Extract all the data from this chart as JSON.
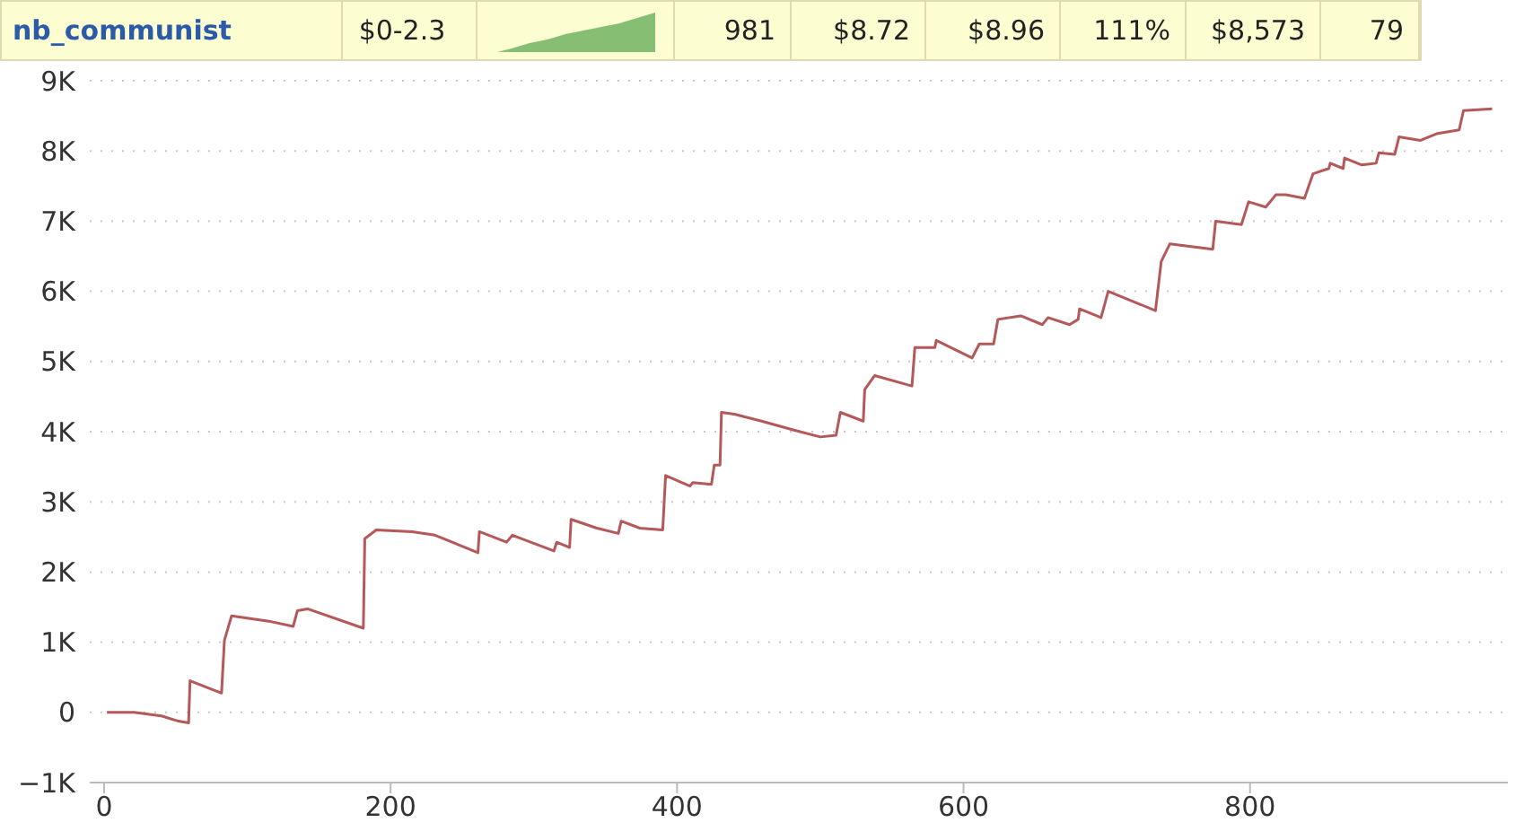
{
  "chart_data": {
    "type": "line",
    "title": "nb_communist",
    "annotations": [
      "$0-2.3",
      "981",
      "$8.72",
      "$8.96",
      "111%",
      "$8,573",
      "79"
    ],
    "x": [
      2,
      21,
      40,
      52,
      59,
      60,
      82,
      84,
      89,
      115,
      132,
      135,
      142,
      181,
      182,
      190,
      215,
      231,
      261,
      262,
      281,
      285,
      314,
      316,
      325,
      326,
      344,
      359,
      361,
      374,
      390,
      392,
      409,
      411,
      424,
      426,
      430,
      431,
      440,
      459,
      481,
      500,
      511,
      514,
      530,
      531,
      538,
      564,
      566,
      580,
      581,
      606,
      611,
      621,
      624,
      640,
      655,
      659,
      674,
      680,
      681,
      696,
      701,
      734,
      738,
      744,
      774,
      776,
      794,
      799,
      811,
      818,
      825,
      838,
      844,
      855,
      856,
      865,
      866,
      878,
      888,
      890,
      901,
      904,
      919,
      931,
      946,
      949,
      969
    ],
    "series": [
      {
        "color": "#b5585a",
        "values": [
          0,
          0,
          -50,
          -125,
          -150,
          450,
          275,
          1025,
          1375,
          1300,
          1225,
          1450,
          1475,
          1200,
          2475,
          2600,
          2575,
          2525,
          2275,
          2575,
          2425,
          2525,
          2300,
          2425,
          2350,
          2750,
          2625,
          2550,
          2725,
          2625,
          2600,
          3375,
          3225,
          3275,
          3250,
          3525,
          3525,
          4275,
          4250,
          4150,
          4025,
          3925,
          3950,
          4275,
          4150,
          4600,
          4800,
          4650,
          5200,
          5200,
          5300,
          5050,
          5250,
          5250,
          5600,
          5650,
          5525,
          5625,
          5525,
          5600,
          5750,
          5625,
          6000,
          5725,
          6425,
          6675,
          6600,
          7000,
          6950,
          7275,
          7200,
          7375,
          7375,
          7325,
          7675,
          7750,
          7825,
          7750,
          7900,
          7800,
          7825,
          7975,
          7950,
          8200,
          8150,
          8250,
          8300,
          8575,
          8600
        ]
      }
    ],
    "xlim": [
      -10,
      980
    ],
    "xticks": [
      0,
      200,
      400,
      600,
      800
    ],
    "ylim": [
      -1000,
      9000
    ],
    "yticks": [
      {
        "value": -1000,
        "label": "−1K"
      },
      0,
      {
        "value": 1000,
        "label": "1K"
      },
      {
        "value": 2000,
        "label": "2K"
      },
      {
        "value": 3000,
        "label": "3K"
      },
      {
        "value": 4000,
        "label": "4K"
      },
      {
        "value": 5000,
        "label": "5K"
      },
      {
        "value": 6000,
        "label": "6K"
      },
      {
        "value": 7000,
        "label": "7K"
      },
      {
        "value": 8000,
        "label": "8K"
      },
      {
        "value": 9000,
        "label": "9K"
      }
    ],
    "grid": "y",
    "legend": false,
    "marker": "none",
    "line_style": "solid"
  }
}
